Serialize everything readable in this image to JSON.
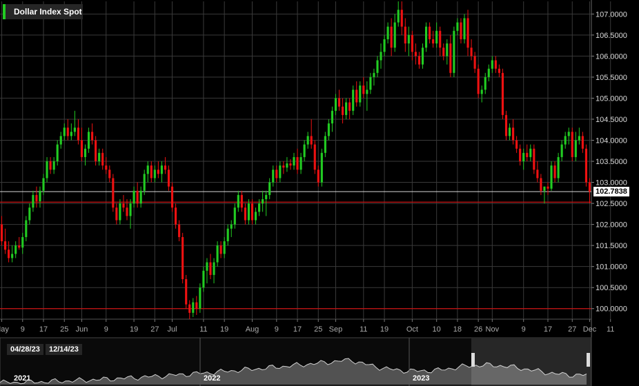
{
  "title": "Dollar Index Spot",
  "last_price_label": "102.7838",
  "colors": {
    "up": "#22cc22",
    "down": "#ee1111",
    "grid": "#3a3a3a",
    "hline": "#cc1111",
    "last_line": "#ffffff",
    "background": "#000000"
  },
  "navigator": {
    "start_date": "04/28/23",
    "end_date": "12/14/23",
    "years": [
      "2021",
      "2022",
      "2023"
    ]
  },
  "chart_data": {
    "type": "candlestick",
    "y_ticks": [
      "107.0000",
      "106.5000",
      "106.0000",
      "105.5000",
      "105.0000",
      "104.5000",
      "104.0000",
      "103.5000",
      "103.0000",
      "102.5000",
      "102.0000",
      "101.5000",
      "101.0000",
      "100.5000",
      "100.0000"
    ],
    "ylim": [
      99.75,
      107.3
    ],
    "x_ticks": [
      "May",
      "9",
      "17",
      "25",
      "Jun",
      "9",
      "19",
      "27",
      "Jul",
      "11",
      "19",
      "Aug",
      "9",
      "17",
      "25",
      "Sep",
      "11",
      "19",
      "Oct",
      "10",
      "18",
      "26",
      "Nov",
      "9",
      "17",
      "27",
      "Dec",
      "11"
    ],
    "x_tick_bars": [
      0,
      6,
      12,
      18,
      23,
      30,
      38,
      44,
      49,
      58,
      64,
      72,
      79,
      85,
      91,
      96,
      104,
      110,
      118,
      125,
      131,
      137,
      141,
      150,
      157,
      164,
      169,
      175
    ],
    "horizontal_lines": [
      102.53,
      100.0
    ],
    "last_price": 102.78,
    "candles": [
      [
        102.0,
        102.2,
        101.5,
        101.6
      ],
      [
        101.6,
        101.9,
        101.3,
        101.4
      ],
      [
        101.4,
        101.6,
        101.1,
        101.2
      ],
      [
        101.2,
        101.5,
        101.1,
        101.3
      ],
      [
        101.3,
        101.6,
        101.2,
        101.5
      ],
      [
        101.5,
        101.7,
        101.4,
        101.45
      ],
      [
        101.45,
        101.8,
        101.3,
        101.7
      ],
      [
        101.7,
        102.2,
        101.6,
        102.1
      ],
      [
        102.1,
        102.5,
        102.0,
        102.4
      ],
      [
        102.4,
        102.8,
        102.3,
        102.7
      ],
      [
        102.7,
        102.9,
        102.4,
        102.55
      ],
      [
        102.55,
        102.9,
        102.4,
        102.8
      ],
      [
        102.8,
        103.2,
        102.7,
        103.1
      ],
      [
        103.1,
        103.6,
        103.0,
        103.5
      ],
      [
        103.5,
        103.6,
        103.2,
        103.3
      ],
      [
        103.3,
        103.6,
        103.2,
        103.5
      ],
      [
        103.5,
        104.0,
        103.4,
        103.9
      ],
      [
        103.9,
        104.2,
        103.8,
        104.1
      ],
      [
        104.1,
        104.4,
        104.0,
        104.3
      ],
      [
        104.3,
        104.5,
        104.0,
        104.1
      ],
      [
        104.1,
        104.4,
        104.0,
        104.2
      ],
      [
        104.2,
        104.7,
        104.1,
        104.3
      ],
      [
        104.3,
        104.5,
        103.9,
        104.0
      ],
      [
        104.0,
        104.3,
        103.5,
        103.6
      ],
      [
        103.6,
        103.9,
        103.4,
        103.8
      ],
      [
        103.8,
        104.3,
        103.7,
        104.2
      ],
      [
        104.2,
        104.4,
        103.9,
        104.0
      ],
      [
        104.0,
        104.1,
        103.4,
        103.5
      ],
      [
        103.5,
        103.8,
        103.4,
        103.7
      ],
      [
        103.7,
        103.8,
        103.3,
        103.4
      ],
      [
        103.4,
        103.6,
        103.2,
        103.3
      ],
      [
        103.3,
        103.4,
        103.0,
        103.1
      ],
      [
        103.1,
        103.2,
        102.3,
        102.4
      ],
      [
        102.4,
        102.5,
        102.0,
        102.1
      ],
      [
        102.1,
        102.6,
        102.0,
        102.5
      ],
      [
        102.5,
        102.7,
        102.3,
        102.4
      ],
      [
        102.4,
        102.6,
        102.1,
        102.2
      ],
      [
        102.2,
        102.6,
        101.9,
        102.5
      ],
      [
        102.5,
        102.9,
        102.4,
        102.8
      ],
      [
        102.8,
        103.0,
        102.4,
        102.5
      ],
      [
        102.5,
        102.9,
        102.4,
        102.8
      ],
      [
        102.8,
        103.3,
        102.7,
        103.2
      ],
      [
        103.2,
        103.5,
        103.0,
        103.4
      ],
      [
        103.4,
        103.5,
        103.0,
        103.1
      ],
      [
        103.1,
        103.4,
        103.0,
        103.3
      ],
      [
        103.3,
        103.5,
        103.1,
        103.2
      ],
      [
        103.2,
        103.5,
        103.0,
        103.4
      ],
      [
        103.4,
        103.6,
        103.2,
        103.3
      ],
      [
        103.3,
        103.4,
        102.8,
        102.9
      ],
      [
        102.9,
        103.0,
        102.3,
        102.4
      ],
      [
        102.4,
        102.5,
        101.9,
        102.0
      ],
      [
        102.0,
        102.1,
        101.6,
        101.7
      ],
      [
        101.7,
        101.8,
        100.6,
        100.7
      ],
      [
        100.7,
        100.8,
        100.0,
        100.1
      ],
      [
        100.1,
        100.2,
        99.75,
        99.9
      ],
      [
        99.9,
        100.25,
        99.8,
        100.15
      ],
      [
        100.15,
        100.3,
        99.85,
        100.0
      ],
      [
        100.0,
        100.6,
        99.9,
        100.5
      ],
      [
        100.5,
        101.0,
        100.4,
        100.9
      ],
      [
        100.9,
        101.2,
        100.6,
        101.1
      ],
      [
        101.1,
        101.3,
        100.7,
        100.8
      ],
      [
        100.8,
        101.2,
        100.6,
        101.1
      ],
      [
        101.1,
        101.6,
        101.0,
        101.5
      ],
      [
        101.5,
        101.6,
        101.2,
        101.3
      ],
      [
        101.3,
        101.7,
        101.2,
        101.6
      ],
      [
        101.6,
        102.0,
        101.5,
        101.9
      ],
      [
        101.9,
        102.1,
        101.7,
        102.0
      ],
      [
        102.0,
        102.5,
        101.9,
        102.4
      ],
      [
        102.4,
        102.8,
        102.3,
        102.7
      ],
      [
        102.7,
        102.8,
        102.3,
        102.4
      ],
      [
        102.4,
        102.5,
        102.0,
        102.1
      ],
      [
        102.1,
        102.6,
        102.0,
        102.5
      ],
      [
        102.5,
        102.6,
        102.0,
        102.1
      ],
      [
        102.1,
        102.4,
        102.0,
        102.3
      ],
      [
        102.3,
        102.6,
        102.2,
        102.5
      ],
      [
        102.5,
        102.8,
        102.3,
        102.6
      ],
      [
        102.6,
        102.8,
        102.2,
        102.7
      ],
      [
        102.7,
        103.1,
        102.6,
        103.0
      ],
      [
        103.0,
        103.4,
        102.9,
        103.3
      ],
      [
        103.3,
        103.4,
        103.0,
        103.1
      ],
      [
        103.1,
        103.5,
        103.0,
        103.4
      ],
      [
        103.4,
        103.5,
        103.2,
        103.35
      ],
      [
        103.35,
        103.6,
        103.25,
        103.45
      ],
      [
        103.45,
        103.55,
        103.3,
        103.4
      ],
      [
        103.4,
        103.7,
        103.3,
        103.6
      ],
      [
        103.6,
        103.8,
        103.2,
        103.3
      ],
      [
        103.3,
        103.7,
        103.2,
        103.6
      ],
      [
        103.6,
        104.0,
        103.5,
        103.9
      ],
      [
        103.9,
        104.2,
        103.8,
        104.1
      ],
      [
        104.1,
        104.5,
        103.8,
        103.9
      ],
      [
        103.9,
        104.0,
        103.2,
        103.3
      ],
      [
        103.3,
        103.4,
        102.9,
        103.0
      ],
      [
        103.0,
        103.8,
        102.9,
        103.7
      ],
      [
        103.7,
        104.2,
        103.6,
        104.1
      ],
      [
        104.1,
        104.5,
        104.0,
        104.4
      ],
      [
        104.4,
        104.8,
        104.2,
        104.7
      ],
      [
        104.7,
        105.1,
        104.6,
        105.0
      ],
      [
        105.0,
        105.2,
        104.7,
        104.8
      ],
      [
        104.8,
        105.0,
        104.4,
        104.6
      ],
      [
        104.6,
        105.0,
        104.5,
        104.9
      ],
      [
        104.9,
        105.0,
        104.5,
        104.7
      ],
      [
        104.7,
        105.3,
        104.6,
        105.2
      ],
      [
        105.2,
        105.4,
        104.8,
        104.9
      ],
      [
        104.9,
        105.4,
        104.8,
        105.3
      ],
      [
        105.3,
        105.5,
        105.0,
        105.1
      ],
      [
        105.1,
        105.4,
        104.7,
        105.2
      ],
      [
        105.2,
        105.6,
        105.1,
        105.5
      ],
      [
        105.5,
        105.7,
        105.3,
        105.6
      ],
      [
        105.6,
        106.0,
        105.5,
        105.9
      ],
      [
        105.9,
        106.3,
        105.7,
        106.1
      ],
      [
        106.1,
        106.5,
        106.0,
        106.4
      ],
      [
        106.4,
        106.8,
        106.3,
        106.7
      ],
      [
        106.7,
        106.9,
        106.0,
        106.2
      ],
      [
        106.2,
        107.0,
        106.1,
        106.8
      ],
      [
        106.8,
        107.3,
        106.7,
        107.1
      ],
      [
        107.1,
        107.3,
        106.5,
        106.7
      ],
      [
        106.7,
        106.9,
        106.1,
        106.3
      ],
      [
        106.3,
        106.7,
        106.0,
        106.5
      ],
      [
        106.5,
        106.6,
        105.9,
        106.1
      ],
      [
        106.1,
        106.3,
        105.8,
        106.0
      ],
      [
        106.0,
        106.1,
        105.7,
        105.8
      ],
      [
        105.8,
        106.3,
        105.7,
        106.2
      ],
      [
        106.2,
        106.8,
        106.1,
        106.7
      ],
      [
        106.7,
        106.8,
        106.3,
        106.4
      ],
      [
        106.4,
        106.6,
        106.2,
        106.3
      ],
      [
        106.3,
        106.8,
        106.2,
        106.6
      ],
      [
        106.6,
        106.7,
        106.0,
        106.2
      ],
      [
        106.2,
        106.3,
        105.9,
        106.0
      ],
      [
        106.0,
        106.4,
        105.8,
        106.3
      ],
      [
        106.3,
        106.5,
        105.5,
        105.6
      ],
      [
        105.6,
        106.7,
        105.5,
        106.6
      ],
      [
        106.6,
        106.9,
        106.5,
        106.8
      ],
      [
        106.8,
        106.9,
        106.3,
        106.4
      ],
      [
        106.4,
        107.0,
        106.3,
        106.9
      ],
      [
        106.9,
        107.1,
        106.0,
        106.2
      ],
      [
        106.2,
        106.4,
        105.9,
        106.0
      ],
      [
        106.0,
        106.1,
        105.6,
        105.7
      ],
      [
        105.7,
        105.8,
        105.0,
        105.1
      ],
      [
        105.1,
        105.3,
        104.9,
        105.2
      ],
      [
        105.2,
        105.6,
        105.1,
        105.5
      ],
      [
        105.5,
        105.8,
        105.4,
        105.7
      ],
      [
        105.7,
        106.0,
        105.6,
        105.9
      ],
      [
        105.9,
        106.0,
        105.6,
        105.7
      ],
      [
        105.7,
        105.8,
        105.5,
        105.6
      ],
      [
        105.6,
        105.7,
        104.5,
        104.6
      ],
      [
        104.6,
        104.7,
        104.0,
        104.1
      ],
      [
        104.1,
        104.4,
        104.0,
        104.3
      ],
      [
        104.3,
        104.5,
        103.9,
        104.0
      ],
      [
        104.0,
        104.1,
        103.7,
        103.8
      ],
      [
        103.8,
        103.9,
        103.4,
        103.5
      ],
      [
        103.5,
        103.8,
        103.3,
        103.7
      ],
      [
        103.7,
        103.9,
        103.5,
        103.6
      ],
      [
        103.6,
        103.9,
        103.5,
        103.8
      ],
      [
        103.8,
        103.9,
        103.2,
        103.3
      ],
      [
        103.3,
        103.5,
        103.0,
        103.1
      ],
      [
        103.1,
        103.2,
        102.7,
        102.8
      ],
      [
        102.8,
        102.9,
        102.5,
        102.9
      ],
      [
        102.9,
        103.0,
        102.7,
        102.85
      ],
      [
        102.85,
        103.5,
        102.8,
        103.4
      ],
      [
        103.4,
        103.5,
        103.0,
        103.1
      ],
      [
        103.1,
        103.7,
        103.0,
        103.6
      ],
      [
        103.6,
        104.0,
        103.5,
        103.9
      ],
      [
        103.9,
        104.2,
        103.8,
        104.1
      ],
      [
        104.1,
        104.3,
        103.9,
        104.2
      ],
      [
        104.2,
        104.3,
        103.5,
        103.6
      ],
      [
        103.6,
        104.2,
        103.5,
        104.0
      ],
      [
        104.0,
        104.3,
        103.9,
        104.1
      ],
      [
        104.1,
        104.2,
        103.7,
        103.8
      ],
      [
        103.8,
        103.9,
        102.9,
        103.0
      ],
      [
        103.0,
        103.1,
        102.5,
        102.78
      ]
    ]
  }
}
